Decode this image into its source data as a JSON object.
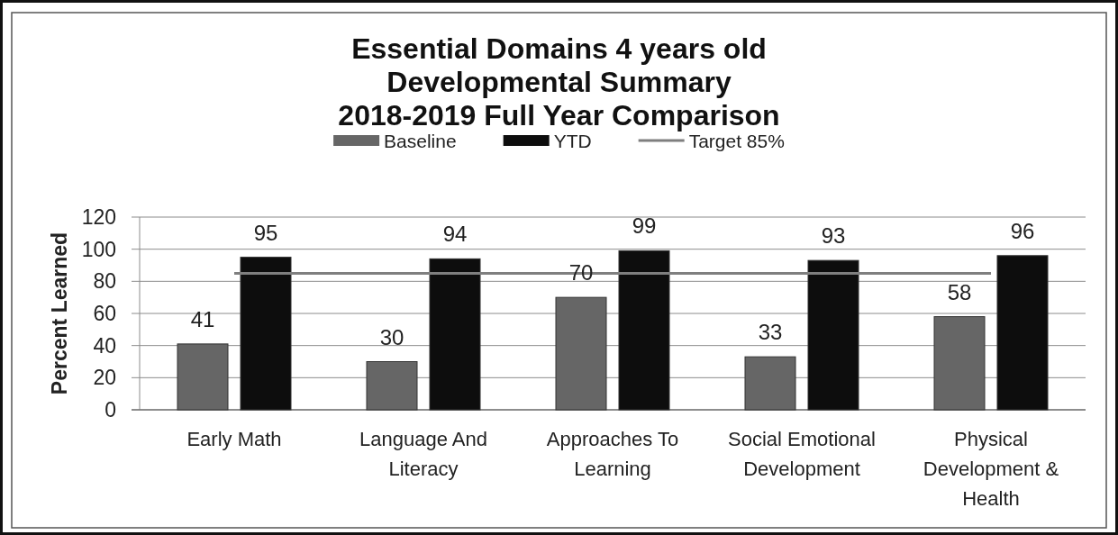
{
  "chart_data": {
    "type": "bar",
    "title": "Essential Domains 4 years old\nDevelopmental Summary\n2018-2019 Full Year Comparison",
    "ylabel": "Percent Learned",
    "categories": [
      "Early Math",
      "Language And Literacy",
      "Approaches To Learning",
      "Social Emotional Development",
      "Physical Development & Health"
    ],
    "series": [
      {
        "name": "Baseline",
        "color": "#666666",
        "values": [
          41,
          30,
          70,
          33,
          58
        ],
        "value_labels": [
          "41",
          "30",
          "70",
          "33",
          "58"
        ]
      },
      {
        "name": "YTD",
        "color": "#0d0d0d",
        "values": [
          95,
          94,
          99,
          93,
          96
        ],
        "value_labels": [
          "95",
          "94",
          "99",
          "93",
          "96"
        ]
      },
      {
        "name": "Target 85%",
        "type": "line",
        "color": "#7f7f7f",
        "values": [
          85,
          85,
          85,
          85,
          85
        ]
      }
    ],
    "ylim": [
      0,
      120
    ],
    "yticks": [
      0,
      20,
      40,
      60,
      80,
      100,
      120
    ],
    "grid": "y",
    "legend": "top"
  }
}
